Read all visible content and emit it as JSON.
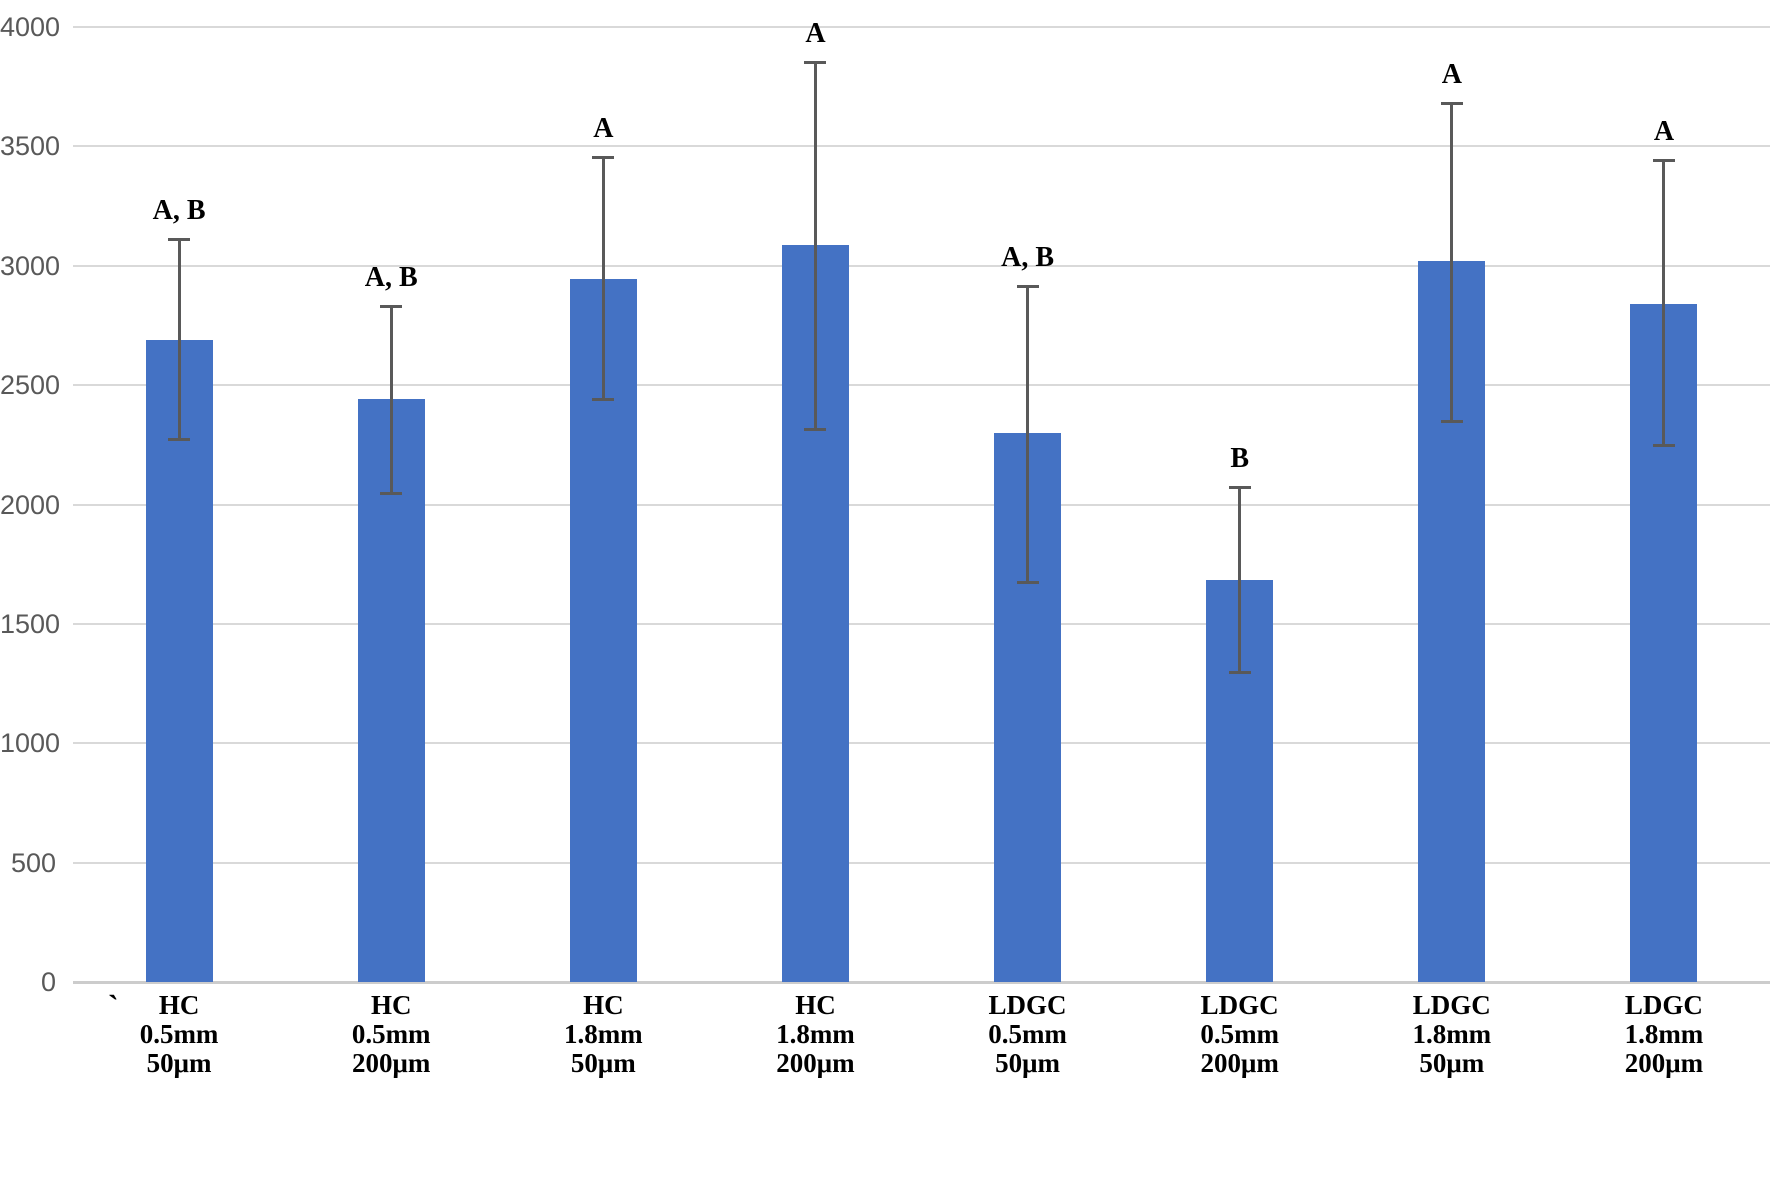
{
  "chart_data": {
    "type": "bar",
    "title": "",
    "xlabel": "",
    "ylabel": "",
    "ylim": [
      0,
      4000
    ],
    "y_ticks": [
      0,
      500,
      1000,
      1500,
      2000,
      2500,
      3000,
      3500,
      4000
    ],
    "grid": true,
    "legend": false,
    "categories": [
      [
        "HC",
        "0.5mm",
        "50μm"
      ],
      [
        "HC",
        "0.5mm",
        "200μm"
      ],
      [
        "HC",
        "1.8mm",
        "50μm"
      ],
      [
        "HC",
        "1.8mm",
        "200μm"
      ],
      [
        "LDGC",
        "0.5mm",
        "50μm"
      ],
      [
        "LDGC",
        "0.5mm",
        "200μm"
      ],
      [
        "LDGC",
        "1.8mm",
        "50μm"
      ],
      [
        "LDGC",
        "1.8mm",
        "200μm"
      ]
    ],
    "values": [
      2690,
      2440,
      2945,
      3085,
      2300,
      1685,
      3020,
      2840
    ],
    "error_high": [
      3110,
      2830,
      3455,
      3855,
      2915,
      2075,
      3680,
      3445
    ],
    "error_low": [
      2275,
      2050,
      2440,
      2315,
      1675,
      1300,
      2350,
      2250
    ],
    "significance_labels": [
      "A, B",
      "A, B",
      "A",
      "A",
      "A, B",
      "B",
      "A",
      "A"
    ],
    "stray_mark": "`",
    "colors": {
      "bar_fill": "#4472C4",
      "error_bar": "#595959",
      "gridline": "#d9d9d9",
      "axis_line": "#cccccc",
      "tick_text": "#595959",
      "label_text": "#000000"
    }
  }
}
